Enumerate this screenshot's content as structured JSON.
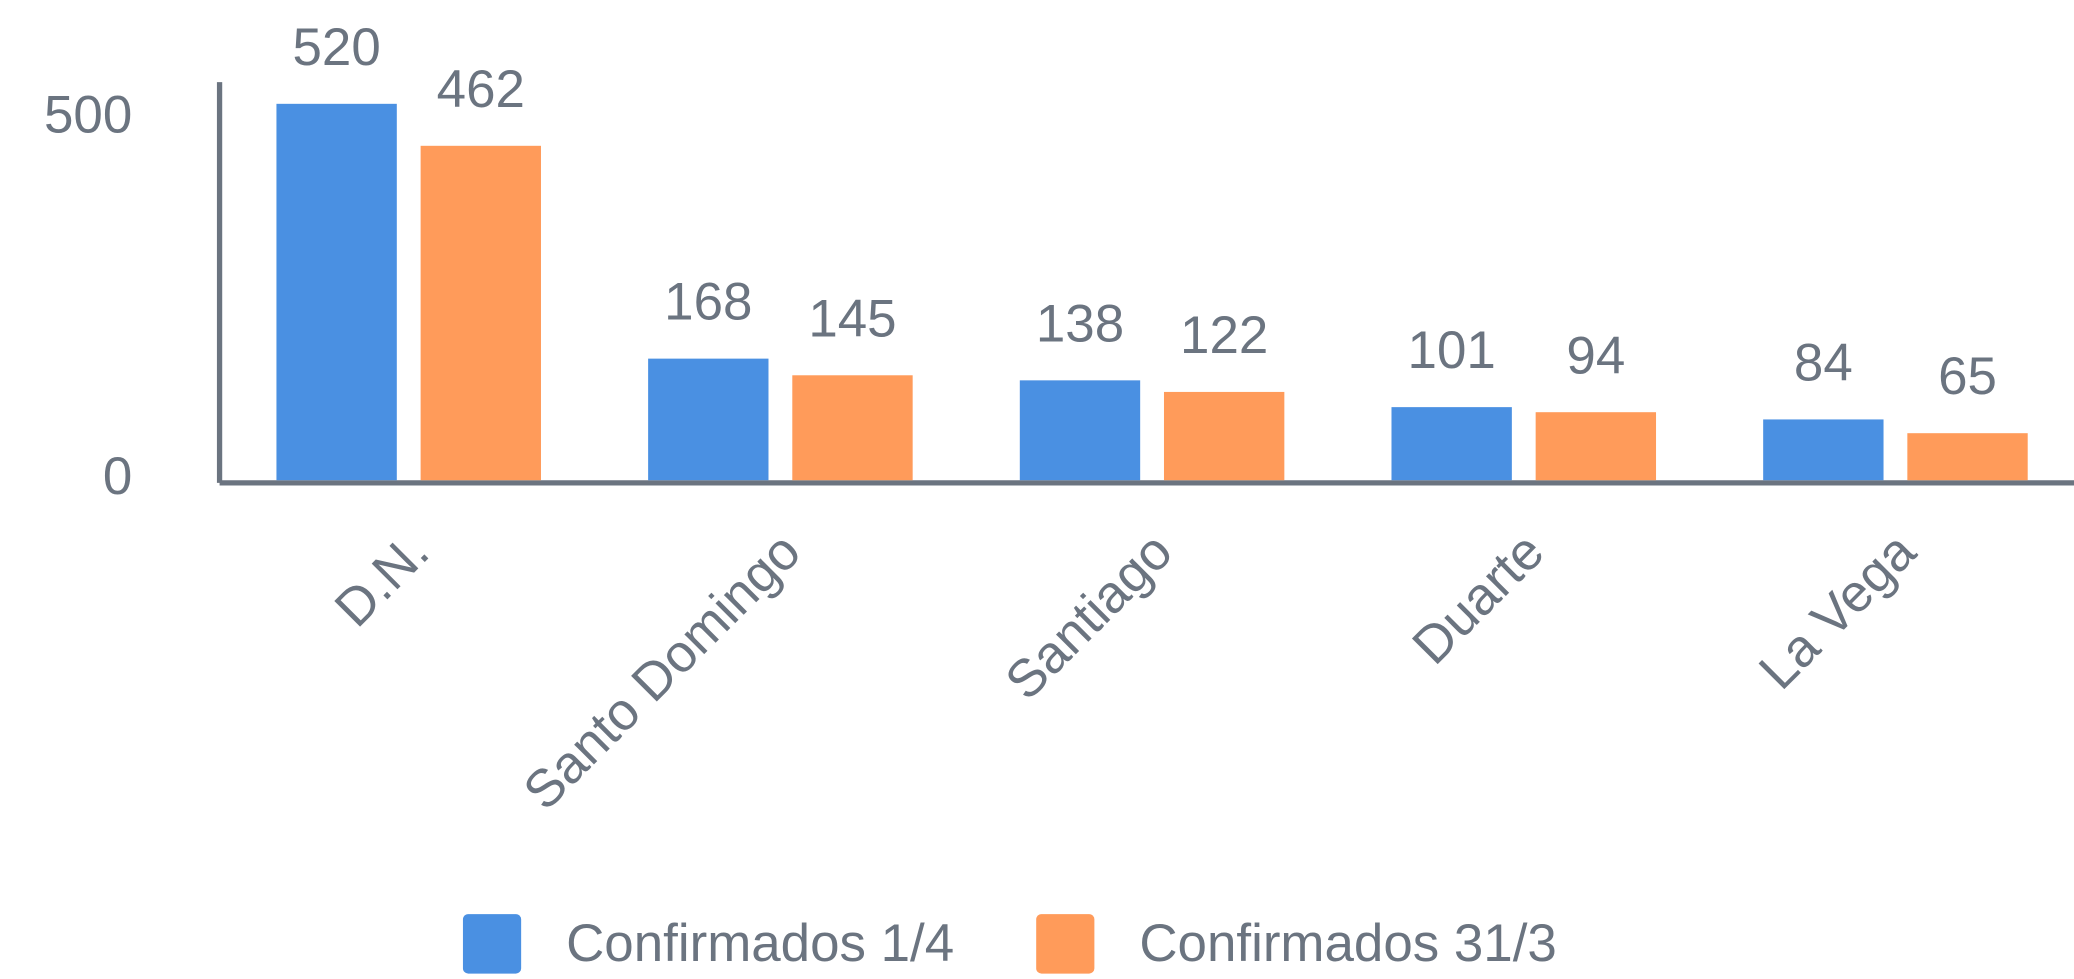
{
  "chart_data": {
    "type": "bar",
    "categories": [
      "D.N.",
      "Santo Domingo",
      "Santiago",
      "Duarte",
      "La Vega"
    ],
    "series": [
      {
        "name": "Confirmados 1/4",
        "color": "#4a90e2",
        "values": [
          520,
          168,
          138,
          101,
          84
        ]
      },
      {
        "name": "Confirmados 31/3",
        "color": "#ff9b5a",
        "values": [
          462,
          145,
          122,
          94,
          65
        ]
      }
    ],
    "ylim": [
      0,
      550
    ],
    "yticks": [
      0,
      500
    ],
    "grid": false,
    "legend": "bottom"
  }
}
